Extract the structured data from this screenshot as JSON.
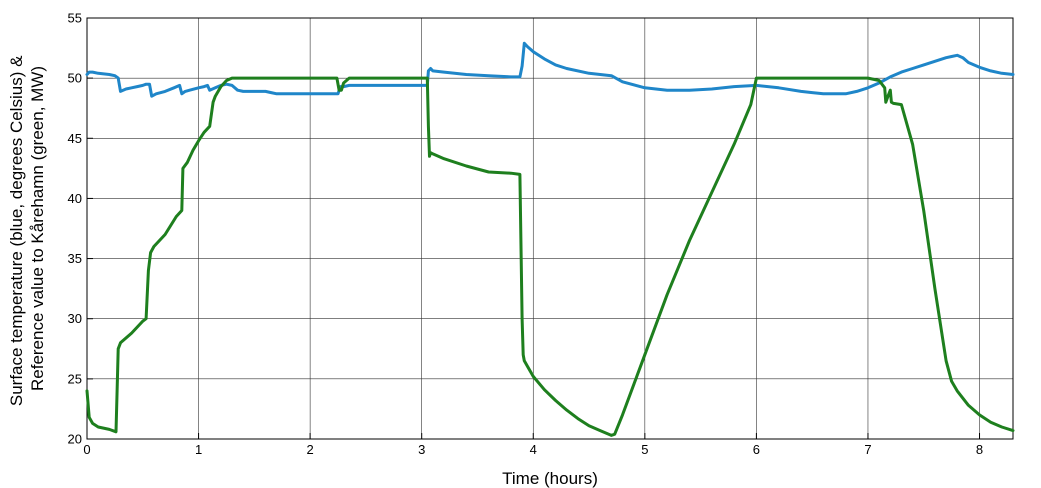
{
  "chart_data": {
    "type": "line",
    "title": "",
    "xlabel": "Time (hours)",
    "ylabel_lines": [
      "Surface temperature (blue, degrees Celsius) &",
      "Reference value to Kårehamn (green, MW)"
    ],
    "xlim": [
      0,
      8.3
    ],
    "ylim": [
      20,
      55
    ],
    "xticks": [
      0,
      1,
      2,
      3,
      4,
      5,
      6,
      7,
      8
    ],
    "yticks": [
      20,
      25,
      30,
      35,
      40,
      45,
      50,
      55
    ],
    "grid": true,
    "series": [
      {
        "color": "#1f86c9",
        "x": [
          0,
          0.02,
          0.05,
          0.1,
          0.15,
          0.2,
          0.25,
          0.28,
          0.3,
          0.35,
          0.4,
          0.45,
          0.5,
          0.53,
          0.56,
          0.58,
          0.62,
          0.7,
          0.78,
          0.83,
          0.85,
          0.88,
          0.92,
          1.0,
          1.05,
          1.08,
          1.1,
          1.15,
          1.2,
          1.25,
          1.3,
          1.35,
          1.4,
          1.5,
          1.6,
          1.65,
          1.7,
          1.8,
          2.0,
          2.2,
          2.25,
          2.27,
          2.3,
          2.35,
          2.4,
          2.5,
          2.7,
          2.9,
          3.0,
          3.05,
          3.06,
          3.08,
          3.1,
          3.2,
          3.4,
          3.6,
          3.8,
          3.88,
          3.9,
          3.92,
          3.95,
          4.0,
          4.1,
          4.2,
          4.3,
          4.5,
          4.7,
          4.8,
          5.0,
          5.2,
          5.4,
          5.6,
          5.8,
          6.0,
          6.2,
          6.4,
          6.5,
          6.6,
          6.8,
          6.9,
          7.0,
          7.1,
          7.2,
          7.3,
          7.4,
          7.5,
          7.6,
          7.7,
          7.75,
          7.8,
          7.85,
          7.9,
          8.0,
          8.1,
          8.2,
          8.3
        ],
        "y": [
          50.3,
          50.5,
          50.5,
          50.4,
          50.35,
          50.3,
          50.2,
          50.0,
          48.9,
          49.1,
          49.2,
          49.3,
          49.4,
          49.5,
          49.5,
          48.5,
          48.7,
          48.9,
          49.2,
          49.4,
          48.7,
          48.9,
          49.0,
          49.2,
          49.3,
          49.4,
          49.0,
          49.2,
          49.4,
          49.5,
          49.4,
          49.0,
          48.9,
          48.9,
          48.9,
          48.8,
          48.7,
          48.7,
          48.7,
          48.7,
          48.7,
          49.3,
          49.3,
          49.4,
          49.4,
          49.4,
          49.4,
          49.4,
          49.4,
          49.4,
          50.6,
          50.8,
          50.6,
          50.5,
          50.3,
          50.2,
          50.1,
          50.1,
          51.0,
          52.9,
          52.6,
          52.2,
          51.6,
          51.1,
          50.8,
          50.4,
          50.2,
          49.7,
          49.2,
          49.0,
          49.0,
          49.1,
          49.3,
          49.4,
          49.2,
          48.9,
          48.8,
          48.7,
          48.7,
          48.9,
          49.2,
          49.6,
          50.1,
          50.5,
          50.8,
          51.1,
          51.4,
          51.7,
          51.8,
          51.9,
          51.7,
          51.3,
          50.9,
          50.6,
          50.4,
          50.3
        ]
      },
      {
        "color": "#1e7f1e",
        "x": [
          0,
          0.02,
          0.05,
          0.1,
          0.2,
          0.26,
          0.27,
          0.28,
          0.3,
          0.4,
          0.5,
          0.53,
          0.55,
          0.57,
          0.6,
          0.7,
          0.8,
          0.85,
          0.86,
          0.9,
          0.95,
          1.0,
          1.05,
          1.1,
          1.13,
          1.15,
          1.2,
          1.25,
          1.3,
          1.5,
          2.0,
          2.2,
          2.24,
          2.26,
          2.28,
          2.3,
          2.35,
          2.5,
          2.8,
          3.0,
          3.05,
          3.06,
          3.07,
          3.08,
          3.1,
          3.2,
          3.4,
          3.6,
          3.8,
          3.88,
          3.9,
          3.91,
          3.92,
          3.95,
          4.0,
          4.1,
          4.2,
          4.3,
          4.4,
          4.5,
          4.6,
          4.7,
          4.73,
          4.8,
          5.0,
          5.2,
          5.4,
          5.6,
          5.8,
          5.95,
          6.0,
          6.5,
          7.0,
          7.1,
          7.15,
          7.16,
          7.18,
          7.2,
          7.21,
          7.23,
          7.3,
          7.4,
          7.5,
          7.6,
          7.7,
          7.75,
          7.8,
          7.9,
          8.0,
          8.1,
          8.2,
          8.3
        ],
        "y": [
          24.0,
          21.8,
          21.3,
          21.0,
          20.8,
          20.6,
          24.0,
          27.5,
          28.0,
          28.8,
          29.8,
          30.0,
          34.0,
          35.5,
          36.0,
          37.0,
          38.5,
          39.0,
          42.5,
          43.0,
          44.0,
          44.8,
          45.5,
          46.0,
          48.0,
          48.5,
          49.3,
          49.8,
          50.0,
          50.0,
          50.0,
          50.0,
          50.0,
          49.0,
          49.0,
          49.6,
          50.0,
          50.0,
          50.0,
          50.0,
          50.0,
          46.0,
          43.5,
          43.8,
          43.7,
          43.3,
          42.7,
          42.2,
          42.1,
          42.0,
          30.0,
          27.0,
          26.5,
          26.0,
          25.2,
          24.1,
          23.2,
          22.4,
          21.7,
          21.1,
          20.7,
          20.3,
          20.4,
          22.0,
          27.0,
          32.0,
          36.5,
          40.5,
          44.5,
          47.8,
          50.0,
          50.0,
          50.0,
          49.8,
          49.2,
          48.0,
          48.5,
          49.0,
          48.0,
          47.9,
          47.8,
          44.5,
          39.0,
          32.5,
          26.5,
          24.8,
          24.0,
          22.8,
          22.0,
          21.4,
          21.0,
          20.7
        ]
      }
    ]
  }
}
